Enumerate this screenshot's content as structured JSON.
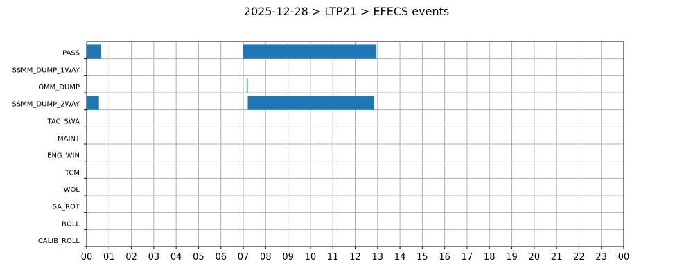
{
  "chart_data": {
    "type": "bar",
    "orientation": "horizontal",
    "title": "2025-12-28 > LTP21 > EFECS events",
    "categories": [
      "PASS",
      "SSMM_DUMP_1WAY",
      "OMM_DUMP",
      "SSMM_DUMP_2WAY",
      "TAC_SWA",
      "MAINT",
      "ENG_WIN",
      "TCM",
      "WOL",
      "SA_ROT",
      "ROLL",
      "CALIB_ROLL"
    ],
    "x_tick_labels": [
      "00",
      "01",
      "02",
      "03",
      "04",
      "05",
      "06",
      "07",
      "08",
      "09",
      "10",
      "11",
      "12",
      "13",
      "14",
      "15",
      "16",
      "17",
      "18",
      "19",
      "20",
      "21",
      "22",
      "23",
      "00"
    ],
    "xlim": [
      0,
      24
    ],
    "x_units": "hour of day",
    "grid": true,
    "bar_color": "#1f77b4",
    "events": [
      {
        "category": "PASS",
        "start": 0.0,
        "end": 0.65
      },
      {
        "category": "PASS",
        "start": 7.0,
        "end": 12.95
      },
      {
        "category": "OMM_DUMP",
        "start": 7.15,
        "end": 7.2
      },
      {
        "category": "SSMM_DUMP_2WAY",
        "start": 0.0,
        "end": 0.55
      },
      {
        "category": "SSMM_DUMP_2WAY",
        "start": 7.2,
        "end": 12.85
      }
    ]
  }
}
